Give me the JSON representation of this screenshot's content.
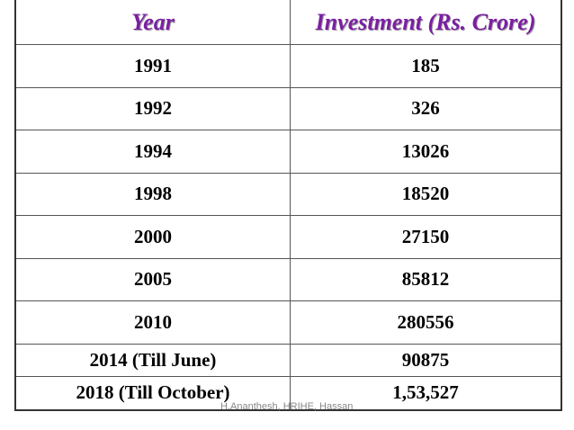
{
  "table": {
    "headers": {
      "year": "Year",
      "investment": "Investment (Rs. Crore)"
    },
    "rows": [
      {
        "year": "1991",
        "investment": "185"
      },
      {
        "year": "1992",
        "investment": "326"
      },
      {
        "year": "1994",
        "investment": "13026"
      },
      {
        "year": "1998",
        "investment": "18520"
      },
      {
        "year": "2000",
        "investment": "27150"
      },
      {
        "year": "2005",
        "investment": "85812"
      },
      {
        "year": "2010",
        "investment": "280556"
      },
      {
        "year": "2014 (Till June)",
        "investment": "90875"
      },
      {
        "year": "2018 (Till October)",
        "investment": "1,53,527"
      }
    ]
  },
  "footer": {
    "text": "H.Ananthesh, HRIHE, Hassan"
  },
  "colors": {
    "header_text": "#7b1fa2"
  }
}
